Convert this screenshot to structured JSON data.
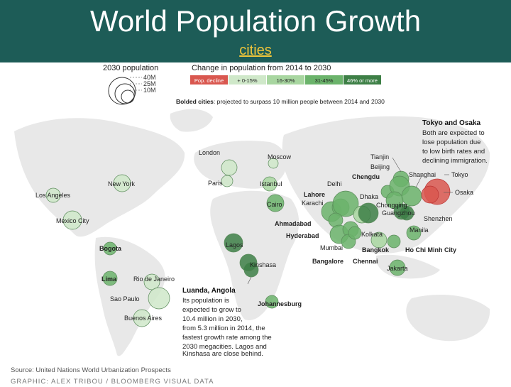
{
  "slide": {
    "title": "World Population Growth",
    "link_text": "cities"
  },
  "legend": {
    "size_title": "2030 population",
    "size_labels": [
      "40M",
      "25M",
      "10M"
    ],
    "change_title": "Change in population from 2014 to 2030",
    "change_categories": [
      {
        "label": "Pop. decline",
        "color": "#d9574f"
      },
      {
        "label": "+ 0-15%",
        "color": "#cfe8c9"
      },
      {
        "label": "16-30%",
        "color": "#a8d6a0"
      },
      {
        "label": "31-45%",
        "color": "#6bb36b"
      },
      {
        "label": "46% or more",
        "color": "#3d7f46"
      }
    ],
    "bolded_note_bold": "Bolded cities",
    "bolded_note_rest": ": projected to surpass 10 million people between 2014 and 2030"
  },
  "cities": [
    {
      "name": "London",
      "bold": false
    },
    {
      "name": "Moscow",
      "bold": false
    },
    {
      "name": "Paris",
      "bold": false
    },
    {
      "name": "Istanbul",
      "bold": false
    },
    {
      "name": "Cairo",
      "bold": false
    },
    {
      "name": "New York",
      "bold": false
    },
    {
      "name": "Los Angeles",
      "bold": false
    },
    {
      "name": "Mexico City",
      "bold": false
    },
    {
      "name": "Bogota",
      "bold": true
    },
    {
      "name": "Lima",
      "bold": true
    },
    {
      "name": "Rio de Janeiro",
      "bold": false
    },
    {
      "name": "Sao Paulo",
      "bold": false
    },
    {
      "name": "Buenos Aires",
      "bold": false
    },
    {
      "name": "Lagos",
      "bold": false
    },
    {
      "name": "Kinshasa",
      "bold": false
    },
    {
      "name": "Johannesburg",
      "bold": true
    },
    {
      "name": "Delhi",
      "bold": false
    },
    {
      "name": "Lahore",
      "bold": true
    },
    {
      "name": "Karachi",
      "bold": false
    },
    {
      "name": "Ahmadabad",
      "bold": true
    },
    {
      "name": "Hyderabad",
      "bold": true
    },
    {
      "name": "Mumbai",
      "bold": false
    },
    {
      "name": "Bangalore",
      "bold": true
    },
    {
      "name": "Chennai",
      "bold": true
    },
    {
      "name": "Dhaka",
      "bold": false
    },
    {
      "name": "Kolkata",
      "bold": false
    },
    {
      "name": "Chengdu",
      "bold": true
    },
    {
      "name": "Tianjin",
      "bold": false
    },
    {
      "name": "Beijing",
      "bold": false
    },
    {
      "name": "Chongqing",
      "bold": false
    },
    {
      "name": "Guangzhou",
      "bold": false
    },
    {
      "name": "Shanghai",
      "bold": false
    },
    {
      "name": "Shenzhen",
      "bold": false
    },
    {
      "name": "Bangkok",
      "bold": true
    },
    {
      "name": "Ho Chi Minh City",
      "bold": true
    },
    {
      "name": "Manila",
      "bold": false
    },
    {
      "name": "Jakarta",
      "bold": false
    },
    {
      "name": "Tokyo",
      "bold": false
    },
    {
      "name": "Osaka",
      "bold": false
    }
  ],
  "annotations": {
    "tokyo_title": "Tokyo and Osaka",
    "tokyo_lines": [
      "Both are expected to",
      "lose population due",
      "to low birth rates and",
      "declining immigration."
    ],
    "luanda_title": "Luanda, Angola",
    "luanda_lines": [
      "Its population is",
      "expected to grow to",
      "10.4 million in 2030,",
      "from 5.3 million in 2014, the",
      "fastest growth rate among the",
      "2030 megacities. Lagos and",
      "Kinshasa are close behind."
    ]
  },
  "footer": {
    "source": "Source: United Nations World Urbanization Prospects",
    "graphic": "GRAPHIC: ALEX TRIBOU / BLOOMBERG VISUAL DATA"
  }
}
